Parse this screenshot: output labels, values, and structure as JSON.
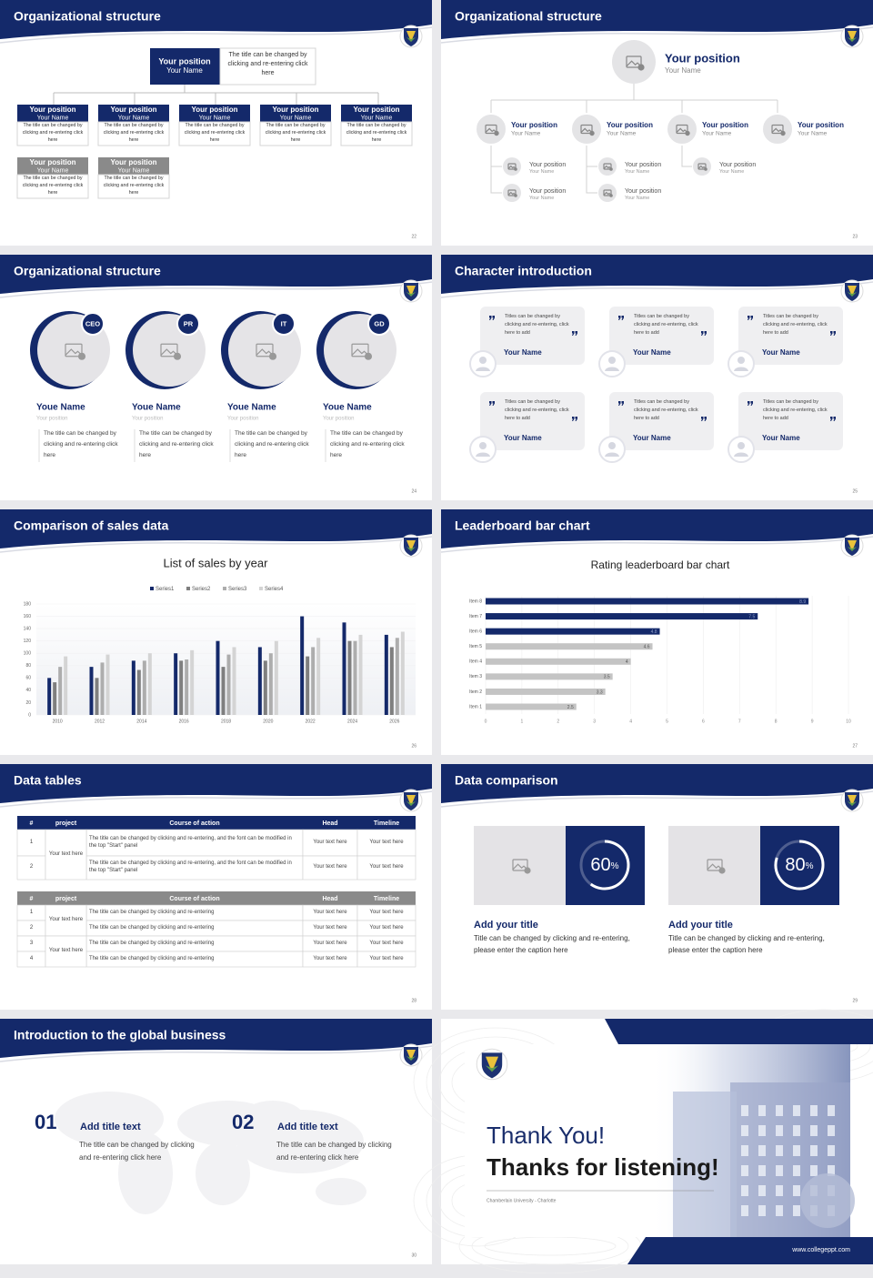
{
  "slides": [
    {
      "title": "Organizational structure",
      "page": "22",
      "top": {
        "position": "Your position",
        "name": "Your Name",
        "text": "The title can be changed by clicking and re-entering click here"
      },
      "level1": [
        {
          "position": "Your position",
          "name": "Your Name",
          "text": "The title can be changed by clicking and re-entering click here"
        },
        {
          "position": "Your position",
          "name": "Your Name",
          "text": "The title can be changed by clicking and re-entering click here"
        },
        {
          "position": "Your position",
          "name": "Your Name",
          "text": "The title can be changed by clicking and re-entering click here"
        },
        {
          "position": "Your position",
          "name": "Your Name",
          "text": "The title can be changed by clicking and re-entering click here"
        },
        {
          "position": "Your position",
          "name": "Your Name",
          "text": "The title can be changed by clicking and re-entering click here"
        }
      ],
      "level2": [
        {
          "position": "Your position",
          "name": "Your Name",
          "text": "The title can be changed by clicking and re-entering click here"
        },
        {
          "position": "Your position",
          "name": "Your Name",
          "text": "The title can be changed by clicking and re-entering click here"
        }
      ]
    },
    {
      "title": "Organizational structure",
      "page": "23",
      "top": {
        "position": "Your position",
        "name": "Your Name"
      },
      "members": [
        {
          "position": "Your position",
          "name": "Your Name"
        },
        {
          "position": "Your position",
          "name": "Your Name"
        },
        {
          "position": "Your position",
          "name": "Your Name"
        },
        {
          "position": "Your position",
          "name": "Your Name"
        }
      ],
      "subs": [
        {
          "position": "Your position",
          "name": "Your Name"
        },
        {
          "position": "Your position",
          "name": "Your Name"
        },
        {
          "position": "Your position",
          "name": "Your Name"
        },
        {
          "position": "Your position",
          "name": "Your Name"
        },
        {
          "position": "Your position",
          "name": "Your Name"
        }
      ]
    },
    {
      "title": "Organizational structure",
      "page": "24",
      "members": [
        {
          "badge": "CEO",
          "name": "Youe Name",
          "role": "Your position",
          "text": "The title can be changed by clicking and re-entering click here"
        },
        {
          "badge": "PR",
          "name": "Youe Name",
          "role": "Your position",
          "text": "The title can be changed by clicking and re-entering click here"
        },
        {
          "badge": "IT",
          "name": "Youe Name",
          "role": "Your position",
          "text": "The title can be changed by clicking and re-entering click here"
        },
        {
          "badge": "GD",
          "name": "Youe Name",
          "role": "Your position",
          "text": "The title can be changed by clicking and re-entering click here"
        }
      ]
    },
    {
      "title": "Character introduction",
      "page": "25",
      "cards": [
        {
          "text": "Titles can be changed by clicking and re-entering, click here to add",
          "name": "Your Name"
        },
        {
          "text": "Titles can be changed by clicking and re-entering, click here to add",
          "name": "Your Name"
        },
        {
          "text": "Titles can be changed by clicking and re-entering, click here to add",
          "name": "Your Name"
        },
        {
          "text": "Titles can be changed by clicking and re-entering, click here to add",
          "name": "Your Name"
        },
        {
          "text": "Titles can be changed by clicking and re-entering, click here to add",
          "name": "Your Name"
        },
        {
          "text": "Titles can be changed by clicking and re-entering, click here to add",
          "name": "Your Name"
        }
      ]
    },
    {
      "title": "Comparison of sales data",
      "page": "26",
      "chart": {
        "type": "bar",
        "title": "List of sales by year",
        "categories": [
          "2010",
          "2012",
          "2014",
          "2016",
          "2018",
          "2020",
          "2022",
          "2024",
          "2026"
        ],
        "series": [
          {
            "name": "Series1",
            "color": "#14296a",
            "values": [
              60,
              78,
              88,
              100,
              120,
              110,
              160,
              150,
              130
            ]
          },
          {
            "name": "Series2",
            "color": "#7f7f7f",
            "values": [
              53,
              60,
              73,
              88,
              78,
              88,
              95,
              120,
              110
            ]
          },
          {
            "name": "Series3",
            "color": "#adadad",
            "values": [
              78,
              85,
              88,
              90,
              98,
              100,
              110,
              120,
              125
            ]
          },
          {
            "name": "Series4",
            "color": "#d4d4d4",
            "values": [
              95,
              98,
              100,
              105,
              110,
              120,
              125,
              130,
              135
            ]
          }
        ],
        "ylim": [
          0,
          180
        ],
        "yticks": [
          0,
          20,
          40,
          60,
          80,
          100,
          120,
          140,
          160,
          180
        ],
        "grid": true,
        "legend": "top"
      }
    },
    {
      "title": "Leaderboard bar chart",
      "page": "27",
      "chart": {
        "type": "barh",
        "title": "Rating leaderboard bar chart",
        "categories": [
          "Item 1",
          "Item 2",
          "Item 3",
          "Item 4",
          "Item 5",
          "Item 6",
          "Item 7",
          "Item 8"
        ],
        "values": [
          2.5,
          3.3,
          3.5,
          4,
          4.6,
          4.8,
          7.5,
          8.9
        ],
        "colors": [
          "#c4c4c4",
          "#c4c4c4",
          "#c4c4c4",
          "#c4c4c4",
          "#c4c4c4",
          "#14296a",
          "#14296a",
          "#14296a"
        ],
        "xlim": [
          0,
          10
        ],
        "xticks": [
          0,
          1,
          2,
          3,
          4,
          5,
          6,
          7,
          8,
          9,
          10
        ],
        "grid": true
      }
    },
    {
      "title": "Data tables",
      "page": "28",
      "tables": [
        {
          "headers": [
            "#",
            "project",
            "Course of action",
            "Head",
            "Timeline"
          ],
          "groups": [
            {
              "project": "Your text here",
              "rows": [
                [
                  "1",
                  "The title can be changed by clicking and re-entering, and the font can be modified in the top \"Start\" panel",
                  "Your text here",
                  "Your text here"
                ],
                [
                  "2",
                  "The title can be changed by clicking and re-entering, and the font can be modified in the top \"Start\" panel",
                  "Your text here",
                  "Your text here"
                ]
              ]
            }
          ]
        },
        {
          "headers": [
            "#",
            "project",
            "Course of action",
            "Head",
            "Timeline"
          ],
          "groups": [
            {
              "project": "Your text here",
              "rows": [
                [
                  "1",
                  "The title can be changed by clicking and re-entering",
                  "Your text here",
                  "Your text here"
                ],
                [
                  "2",
                  "The title can be changed by clicking and re-entering",
                  "Your text here",
                  "Your text here"
                ]
              ]
            },
            {
              "project": "Your text here",
              "rows": [
                [
                  "3",
                  "The title can be changed by clicking and re-entering",
                  "Your text here",
                  "Your text here"
                ],
                [
                  "4",
                  "The title can be changed by clicking and re-entering",
                  "Your text here",
                  "Your text here"
                ]
              ]
            }
          ]
        }
      ]
    },
    {
      "title": "Data comparison",
      "page": "29",
      "cards": [
        {
          "percent": 60,
          "unit": "%",
          "title": "Add your title",
          "text": "Title can be changed by clicking and re-entering, please enter the caption here"
        },
        {
          "percent": 80,
          "unit": "%",
          "title": "Add your title",
          "text": "Title can be changed by clicking and re-entering, please enter the caption here"
        }
      ]
    },
    {
      "title": "Introduction to the global business",
      "page": "30",
      "items": [
        {
          "number": "01",
          "title": "Add title text",
          "text": "The title can be changed by clicking and re-entering click here"
        },
        {
          "number": "02",
          "title": "Add title text",
          "text": "The title can be changed by clicking and re-entering click here"
        }
      ]
    },
    {
      "heading": "Thank You!",
      "subheading": "Thanks for listening!",
      "caption": "Chamberlain University - Charlotte",
      "url": "www.collegeppt.com"
    }
  ]
}
